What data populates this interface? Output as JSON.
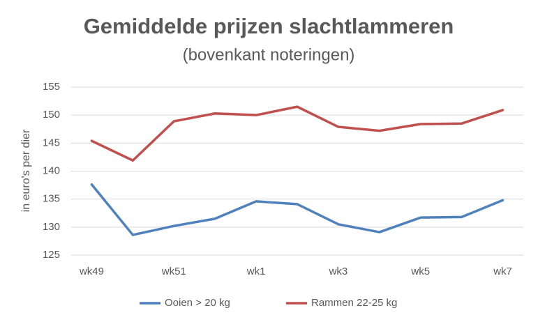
{
  "chart_data": {
    "type": "line",
    "title": "Gemiddelde prijzen slachtlammeren",
    "subtitle": "(bovenkant noteringen)",
    "y_label": "in euro's per dier",
    "categories": [
      "wk49",
      null,
      "wk51",
      null,
      "wk1",
      null,
      "wk3",
      null,
      "wk5",
      null,
      "wk7"
    ],
    "series": [
      {
        "name": "Ooien > 20 kg",
        "color": "#4f81bd",
        "values": [
          137.6,
          128.6,
          130.2,
          131.5,
          134.6,
          134.1,
          130.5,
          129.1,
          131.7,
          131.8,
          134.8
        ]
      },
      {
        "name": "Rammen 22-25 kg",
        "color": "#c0504d",
        "values": [
          145.4,
          141.9,
          148.9,
          150.3,
          150.0,
          151.5,
          147.9,
          147.2,
          148.4,
          148.5,
          150.9
        ]
      }
    ],
    "ylim": [
      125,
      155
    ],
    "yticks": [
      125,
      130,
      135,
      140,
      145,
      150,
      155
    ],
    "grid": true,
    "legend": "bottom"
  }
}
